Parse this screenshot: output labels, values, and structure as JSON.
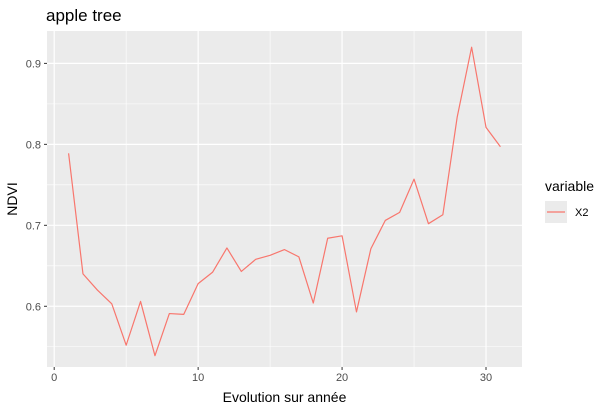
{
  "chart_data": {
    "type": "line",
    "title": "apple tree",
    "xlabel": "Evolution sur année",
    "ylabel": "NDVI",
    "xlim": [
      -0.5,
      32.5
    ],
    "ylim": [
      0.525,
      0.94
    ],
    "x_ticks": [
      0,
      10,
      20,
      30
    ],
    "x_tick_labels": [
      "0",
      "10",
      "20",
      "30"
    ],
    "y_ticks": [
      0.6,
      0.7,
      0.8,
      0.9
    ],
    "y_tick_labels": [
      "0.6",
      "0.7",
      "0.8",
      "0.9"
    ],
    "grid": true,
    "legend": {
      "title": "variable",
      "position": "right"
    },
    "series": [
      {
        "name": "X2",
        "color": "#F8766D",
        "x": [
          1,
          2,
          3,
          4,
          5,
          6,
          7,
          8,
          9,
          10,
          11,
          12,
          13,
          14,
          15,
          16,
          17,
          18,
          19,
          20,
          21,
          22,
          23,
          24,
          25,
          26,
          27,
          28,
          29,
          30,
          31
        ],
        "y": [
          0.789,
          0.64,
          0.62,
          0.603,
          0.552,
          0.606,
          0.539,
          0.591,
          0.59,
          0.628,
          0.642,
          0.672,
          0.643,
          0.658,
          0.663,
          0.67,
          0.661,
          0.604,
          0.684,
          0.687,
          0.593,
          0.671,
          0.706,
          0.716,
          0.757,
          0.702,
          0.713,
          0.834,
          0.92,
          0.821,
          0.797
        ]
      }
    ]
  }
}
